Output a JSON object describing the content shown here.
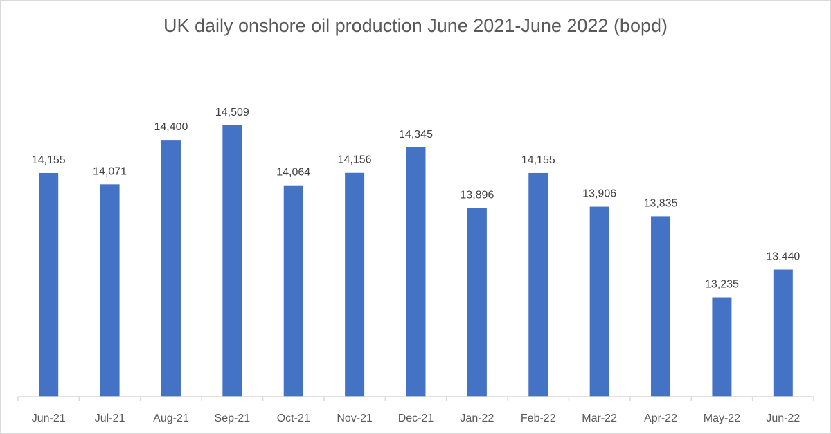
{
  "chart_data": {
    "type": "bar",
    "title": "UK daily onshore oil production June 2021-June 2022 (bopd)",
    "xlabel": "",
    "ylabel": "",
    "ylim": [
      12500,
      15000
    ],
    "grid": false,
    "legend": "none",
    "bar_color": "#4472c4",
    "categories": [
      "Jun-21",
      "Jul-21",
      "Aug-21",
      "Sep-21",
      "Oct-21",
      "Nov-21",
      "Dec-21",
      "Jan-22",
      "Feb-22",
      "Mar-22",
      "Apr-22",
      "May-22",
      "Jun-22"
    ],
    "values": [
      14155,
      14071,
      14400,
      14509,
      14064,
      14156,
      14345,
      13896,
      14155,
      13906,
      13835,
      13235,
      13440
    ],
    "data_labels": [
      "14,155",
      "14,071",
      "14,400",
      "14,509",
      "14,064",
      "14,156",
      "14,345",
      "13,896",
      "14,155",
      "13,906",
      "13,835",
      "13,235",
      "13,440"
    ]
  }
}
